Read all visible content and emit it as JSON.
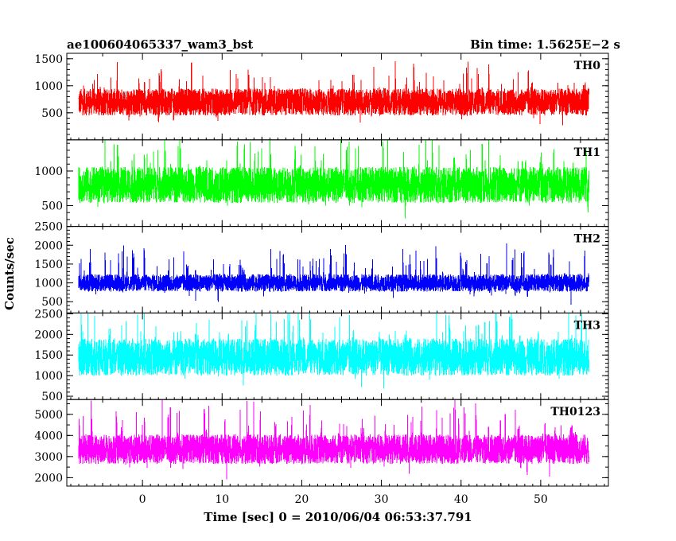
{
  "chart_data": {
    "type": "line",
    "title": "ae100604065337_wam3_bst",
    "bin_time_label": "Bin time: 1.5625E−2 s",
    "xlabel": "Time [sec] 0 = 2010/06/04 06:53:37.791",
    "ylabel": "Counts/sec",
    "xlim": [
      -9.5,
      58.5
    ],
    "xticks": [
      0,
      10,
      20,
      30,
      40,
      50
    ],
    "x_range": [
      -8,
      56
    ],
    "panels": [
      {
        "name": "TH0",
        "color": "#ff0000",
        "ylim": [
          0,
          1600
        ],
        "yticks": [
          500,
          1000,
          1500
        ],
        "baseline": 700,
        "noise": 250,
        "spike": 400,
        "floor": 20
      },
      {
        "name": "TH1",
        "color": "#00ff00",
        "ylim": [
          200,
          1450
        ],
        "yticks": [
          500,
          1000
        ],
        "baseline": 800,
        "noise": 260,
        "spike": 400,
        "floor": 220
      },
      {
        "name": "TH2",
        "color": "#0000ff",
        "ylim": [
          200,
          2500
        ],
        "yticks": [
          500,
          1000,
          1500,
          2000,
          2500
        ],
        "baseline": 1000,
        "noise": 230,
        "spike": 600,
        "floor": 250
      },
      {
        "name": "TH3",
        "color": "#00ffff",
        "ylim": [
          420,
          2520
        ],
        "yticks": [
          500,
          1000,
          1500,
          2000,
          2500
        ],
        "baseline": 1450,
        "noise": 450,
        "spike": 700,
        "floor": 450
      },
      {
        "name": "TH0123",
        "color": "#ff00ff",
        "ylim": [
          1600,
          5700
        ],
        "yticks": [
          2000,
          3000,
          4000,
          5000
        ],
        "baseline": 3350,
        "noise": 700,
        "spike": 1300,
        "floor": 1650
      }
    ]
  }
}
